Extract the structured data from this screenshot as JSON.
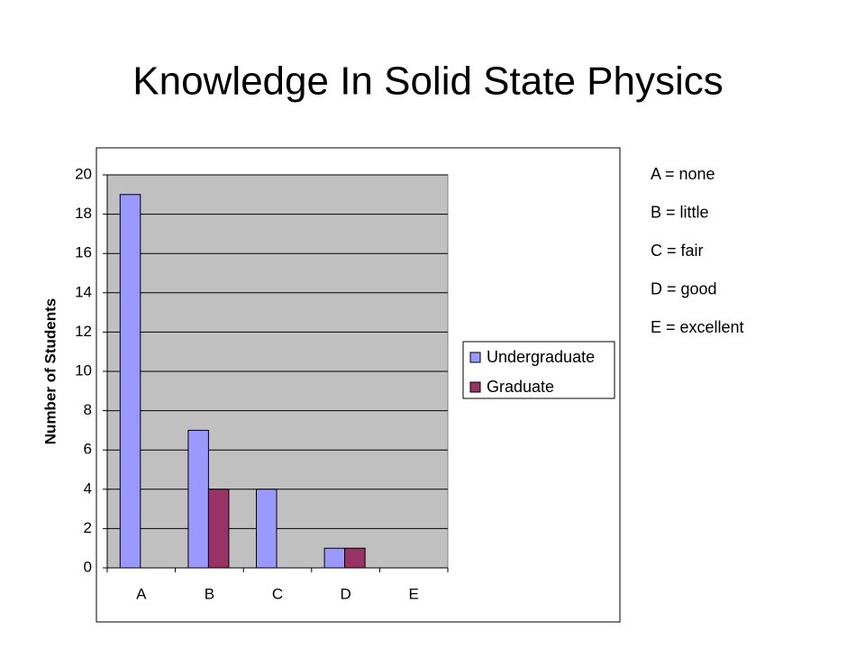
{
  "chart_data": {
    "type": "bar",
    "title": "Knowledge In Solid State Physics",
    "y_label": "Number of Students",
    "categories": [
      "A",
      "B",
      "C",
      "D",
      "E"
    ],
    "series": [
      {
        "name": "Undergraduate",
        "color": "#9999ff",
        "values": [
          19,
          7,
          4,
          1,
          0
        ]
      },
      {
        "name": "Graduate",
        "color": "#993366",
        "values": [
          0,
          4,
          0,
          1,
          0
        ]
      }
    ],
    "ylim": [
      0,
      20
    ],
    "yticks": [
      0,
      2,
      4,
      6,
      8,
      10,
      12,
      14,
      16,
      18,
      20
    ],
    "grid": true,
    "legend": "right",
    "annotations": [
      "A = none",
      "B = little",
      "C = fair",
      "D = good",
      "E = excellent"
    ]
  }
}
